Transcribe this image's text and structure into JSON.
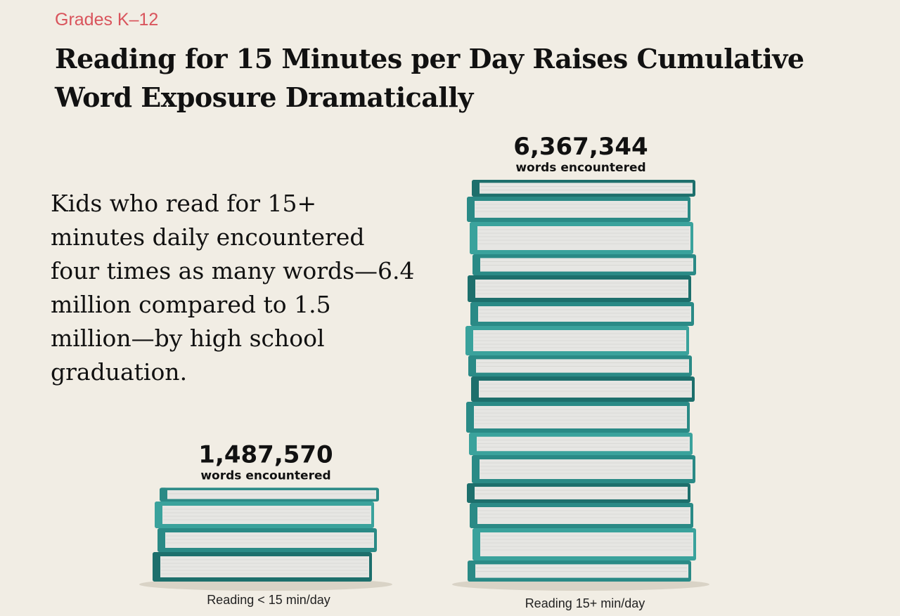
{
  "header": {
    "kicker": "Grades K–12",
    "title": "Reading for 15 Minutes per Day Raises Cumulative Word Exposure Dramatically"
  },
  "body_text": "Kids who read for 15+ minutes daily encountered four times as many words—6.4 million compared to 1.5 million—by high school graduation.",
  "colors": {
    "cover_dark": "#1d6f6c",
    "cover_mid": "#2a8a86",
    "cover_light": "#3aa29c",
    "pages": "#e6e6e3",
    "accent": "#d9545c"
  },
  "chart_data": {
    "type": "bar",
    "encoding": "stacked-books",
    "categories": [
      "Reading < 15 min/day",
      "Reading 15+ min/day"
    ],
    "values": [
      1487570,
      6367344
    ],
    "value_labels": [
      "1,487,570",
      "6,367,344"
    ],
    "unit_label": "words encountered"
  }
}
